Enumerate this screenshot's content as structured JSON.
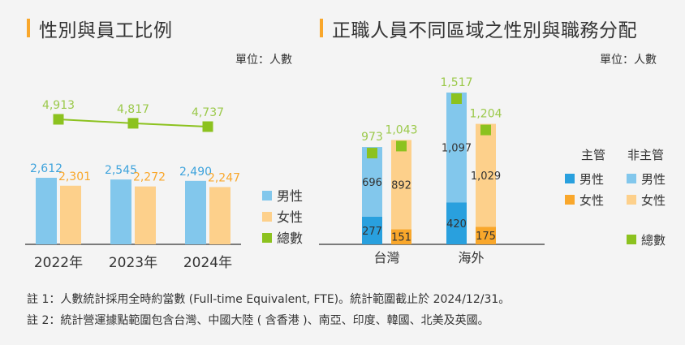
{
  "colors": {
    "male": "#82c7ec",
    "female": "#fdd08b",
    "total": "#8cc21f",
    "total_label": "#9bc94a",
    "male_label": "#3ea3dc",
    "female_label": "#f9a72b",
    "mgr_male": "#29a0de",
    "mgr_female": "#f9a72b",
    "accent": "#f9a72b",
    "axis": "#333333"
  },
  "left": {
    "title": "性別與員工比例",
    "unit": "單位：人數"
  },
  "right": {
    "title": "正職人員不同區域之性別與職務分配",
    "unit": "單位：人數"
  },
  "chart_data": [
    {
      "type": "bar",
      "title": "性別與員工比例",
      "unit": "單位：人數",
      "categories": [
        "2022年",
        "2023年",
        "2024年"
      ],
      "series": [
        {
          "name": "男性",
          "kind": "bar",
          "values": [
            2612,
            2545,
            2490
          ],
          "labels": [
            "2,612",
            "2,545",
            "2,490"
          ]
        },
        {
          "name": "女性",
          "kind": "bar",
          "values": [
            2301,
            2272,
            2247
          ],
          "labels": [
            "2,301",
            "2,272",
            "2,247"
          ]
        },
        {
          "name": "總數",
          "kind": "line",
          "values": [
            4913,
            4817,
            4737
          ],
          "labels": [
            "4,913",
            "4,817",
            "4,737"
          ]
        }
      ],
      "legend": [
        "男性",
        "女性",
        "總數"
      ],
      "legend_position": "right",
      "grid": false
    },
    {
      "type": "bar",
      "stacked": true,
      "title": "正職人員不同區域之性別與職務分配",
      "unit": "單位：人數",
      "categories": [
        "台灣",
        "海外"
      ],
      "groups": [
        {
          "name": "男性",
          "stack": [
            {
              "name": "主管",
              "values": [
                277,
                420
              ],
              "labels": [
                "277",
                "420"
              ]
            },
            {
              "name": "非主管",
              "values": [
                696,
                1097
              ],
              "labels": [
                "696",
                "1,097"
              ]
            }
          ],
          "totals": [
            973,
            1517
          ],
          "total_labels": [
            "973",
            "1,517"
          ]
        },
        {
          "name": "女性",
          "stack": [
            {
              "name": "主管",
              "values": [
                151,
                175
              ],
              "labels": [
                "151",
                "175"
              ]
            },
            {
              "name": "非主管",
              "values": [
                892,
                1029
              ],
              "labels": [
                "892",
                "1,029"
              ]
            }
          ],
          "totals": [
            1043,
            1204
          ],
          "total_labels": [
            "1,043",
            "1,204"
          ]
        }
      ],
      "legend": {
        "headers": [
          "主管",
          "非主管"
        ],
        "rows": [
          {
            "label": "男性",
            "mgr_label": "男性",
            "nonmgr_label": "男性"
          },
          {
            "label": "女性",
            "mgr_label": "女性",
            "nonmgr_label": "女性"
          }
        ],
        "total_label": "總數"
      },
      "legend_position": "right",
      "grid": false
    }
  ],
  "notes": [
    "註 1：人數統計採用全時約當數 (Full-time Equivalent, FTE)。統計範圍截止於 2024/12/31。",
    "註 2：統計營運據點範圍包含台灣、中國大陸 ( 含香港 )、南亞、印度、韓國、北美及英國。"
  ]
}
